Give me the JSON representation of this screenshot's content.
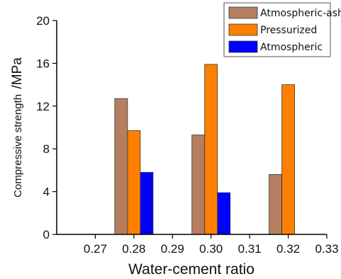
{
  "chart_data": {
    "type": "bar",
    "title": "",
    "xlabel": "Water-cement ratio",
    "ylabel": "Compressive strength /MPa",
    "ylabel_parts": [
      "Compressive strength",
      "/MPa"
    ],
    "xlim": [
      0.26,
      0.33
    ],
    "ylim": [
      0,
      20
    ],
    "xticks": [
      "0.27",
      "0.28",
      "0.29",
      "0.30",
      "0.31",
      "0.32",
      "0.33"
    ],
    "yticks": [
      "0",
      "4",
      "8",
      "12",
      "16",
      "20"
    ],
    "categories": [
      "0.28",
      "0.30",
      "0.32"
    ],
    "series": [
      {
        "name": "Atmospheric-ash",
        "color": "#b57f5f",
        "values": [
          12.7,
          9.3,
          5.6
        ]
      },
      {
        "name": "Pressurized",
        "color": "#ff8000",
        "values": [
          9.7,
          15.9,
          14.0
        ]
      },
      {
        "name": "Atmospheric",
        "color": "#0000ff",
        "values": [
          5.8,
          3.9,
          null
        ]
      }
    ],
    "grid": false,
    "legend_position": "top-right"
  }
}
